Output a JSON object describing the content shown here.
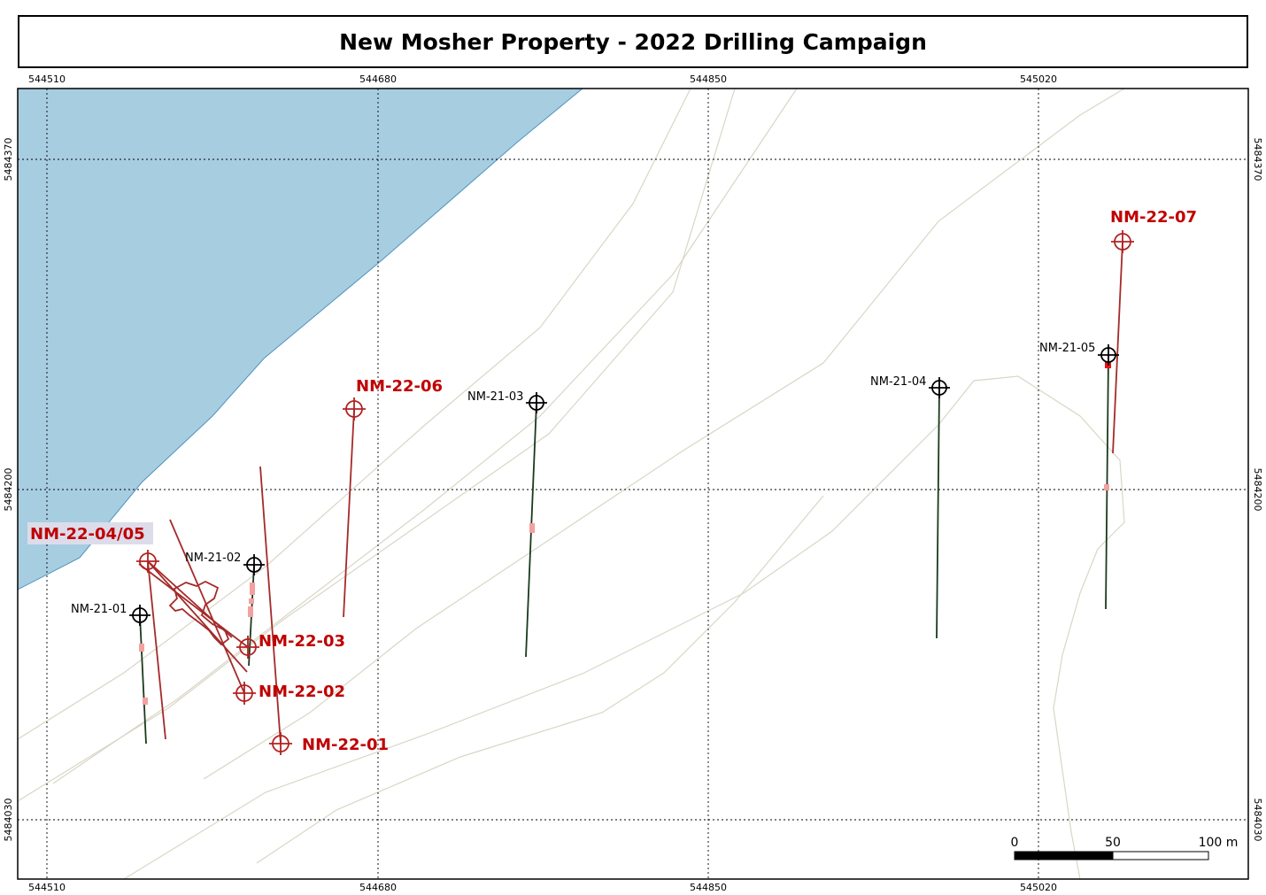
{
  "title": "New Mosher Property - 2022 Drilling Campaign",
  "colors": {
    "water": "#a7cde1",
    "water_edge": "#4f93bf",
    "contour": "#d9d6c6",
    "trace_2022": "#a52a2a",
    "collar_2022": "#b22222",
    "label_2022": "#c00000",
    "trace_2021": "#1b3a1b",
    "sample": "#f4a0a0",
    "sample_strong": "#ee1111"
  },
  "grid": {
    "x_labels": [
      "544510",
      "544680",
      "544850",
      "545020"
    ],
    "y_labels": [
      "5484370",
      "5484200",
      "5484030"
    ]
  },
  "holes_2021": [
    {
      "id": "NM-21-01",
      "label": "NM-21-01"
    },
    {
      "id": "NM-21-02",
      "label": "NM-21-02"
    },
    {
      "id": "NM-21-03",
      "label": "NM-21-03"
    },
    {
      "id": "NM-21-04",
      "label": "NM-21-04"
    },
    {
      "id": "NM-21-05",
      "label": "NM-21-05"
    }
  ],
  "holes_2022": [
    {
      "id": "NM-22-01",
      "label": "NM-22-01"
    },
    {
      "id": "NM-22-02",
      "label": "NM-22-02"
    },
    {
      "id": "NM-22-03",
      "label": "NM-22-03"
    },
    {
      "id": "NM-22-04-05",
      "label": "NM-22-04/05"
    },
    {
      "id": "NM-22-06",
      "label": "NM-22-06"
    },
    {
      "id": "NM-22-07",
      "label": "NM-22-07"
    }
  ],
  "scale_bar": {
    "labels": [
      "0",
      "50",
      "100 m"
    ]
  }
}
